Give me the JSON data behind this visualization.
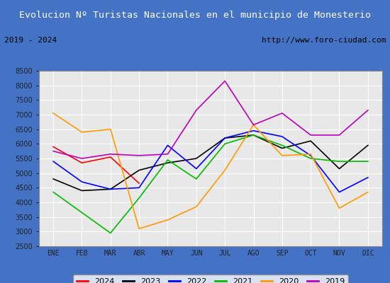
{
  "title": "Evolucion Nº Turistas Nacionales en el municipio de Monesterio",
  "subtitle_left": "2019 - 2024",
  "subtitle_right": "http://www.foro-ciudad.com",
  "months": [
    "ENE",
    "FEB",
    "MAR",
    "ABR",
    "MAY",
    "JUN",
    "JUL",
    "AGO",
    "SEP",
    "OCT",
    "NOV",
    "DIC"
  ],
  "ylim": [
    2500,
    8500
  ],
  "yticks": [
    2500,
    3000,
    3500,
    4000,
    4500,
    5000,
    5500,
    6000,
    6500,
    7000,
    7500,
    8000,
    8500
  ],
  "series": {
    "2024": {
      "color": "#ff0000",
      "data": [
        5900,
        5350,
        5550,
        4650,
        null,
        null,
        null,
        null,
        null,
        null,
        null,
        null
      ]
    },
    "2023": {
      "color": "#000000",
      "data": [
        4800,
        4400,
        4450,
        5100,
        5350,
        5500,
        6200,
        6300,
        5850,
        6100,
        5150,
        5950
      ]
    },
    "2022": {
      "color": "#0000ff",
      "data": [
        5400,
        4700,
        4450,
        4500,
        5950,
        5150,
        6200,
        6450,
        6250,
        5600,
        4350,
        4850
      ]
    },
    "2021": {
      "color": "#00bb00",
      "data": [
        4350,
        3650,
        2950,
        4150,
        5450,
        4800,
        6000,
        6300,
        5950,
        5500,
        5400,
        5400
      ]
    },
    "2020": {
      "color": "#ff9900",
      "data": [
        7050,
        6400,
        6500,
        3100,
        3400,
        3850,
        5100,
        6650,
        5600,
        5650,
        3800,
        4350
      ]
    },
    "2019": {
      "color": "#bb00bb",
      "data": [
        5750,
        5500,
        5650,
        5600,
        5650,
        7150,
        8150,
        6650,
        7050,
        6300,
        6300,
        7150
      ]
    }
  },
  "title_bg": "#4472c4",
  "title_color": "#ffffff",
  "plot_bg": "#e8e8e8",
  "grid_color": "#ffffff",
  "border_color": "#4472c4",
  "subtitle_bg": "#d0d0d0"
}
